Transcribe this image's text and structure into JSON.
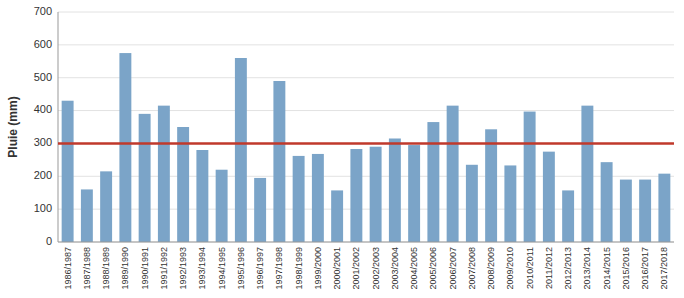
{
  "chart_data": {
    "type": "bar",
    "categories": [
      "1986/1987",
      "1987/1988",
      "1988/1989",
      "1989/1990",
      "1990/1991",
      "1991/1992",
      "1992/1993",
      "1993/1994",
      "1994/1995",
      "1995/1996",
      "1996/1997",
      "1997/1998",
      "1998/1999",
      "1999/2000",
      "2000/2001",
      "2001/2002",
      "2002/2003",
      "2003/2004",
      "2004/2005",
      "2005/2006",
      "2006/2007",
      "2007/2008",
      "2008/2009",
      "2009/2010",
      "2010/2011",
      "2011/2012",
      "2012/2013",
      "2013/2014",
      "2014/2015",
      "2015/2016",
      "2016/2017",
      "2017/2018"
    ],
    "values": [
      430,
      160,
      215,
      575,
      390,
      415,
      350,
      280,
      220,
      560,
      195,
      490,
      262,
      268,
      157,
      283,
      290,
      315,
      295,
      365,
      415,
      235,
      343,
      233,
      397,
      275,
      157,
      415,
      243,
      190,
      190,
      208
    ],
    "color": "#7BA4C8",
    "reference_line": {
      "y": 300,
      "color": "#C0392B"
    },
    "ylabel": "Pluie (mm)",
    "ylim": [
      0,
      700
    ],
    "yticks": [
      0,
      100,
      200,
      300,
      400,
      500,
      600,
      700
    ],
    "grid": true
  }
}
